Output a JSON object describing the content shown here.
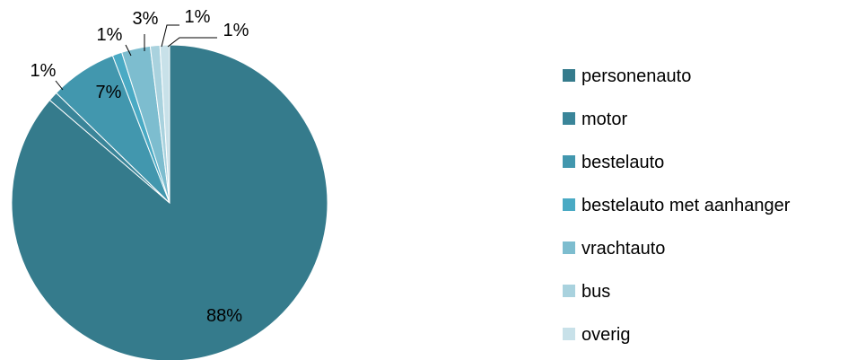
{
  "chart_data": {
    "type": "pie",
    "title": "",
    "legend_position": "right",
    "slices": [
      {
        "label": "personenauto",
        "value": 88,
        "data_label": "88%",
        "color": "#357B8C"
      },
      {
        "label": "motor",
        "value": 1,
        "data_label": "1%",
        "color": "#3A8599"
      },
      {
        "label": "bestelauto",
        "value": 7,
        "data_label": "7%",
        "color": "#4297AE"
      },
      {
        "label": "bestelauto met aanhanger",
        "value": 1,
        "data_label": "1%",
        "color": "#4AAAC4"
      },
      {
        "label": "vrachtauto",
        "value": 3,
        "data_label": "3%",
        "color": "#7DBDCF"
      },
      {
        "label": "bus",
        "value": 1,
        "data_label": "1%",
        "color": "#A9D2DE"
      },
      {
        "label": "overig",
        "value": 1,
        "data_label": "1%",
        "color": "#C8E1E9"
      }
    ]
  }
}
